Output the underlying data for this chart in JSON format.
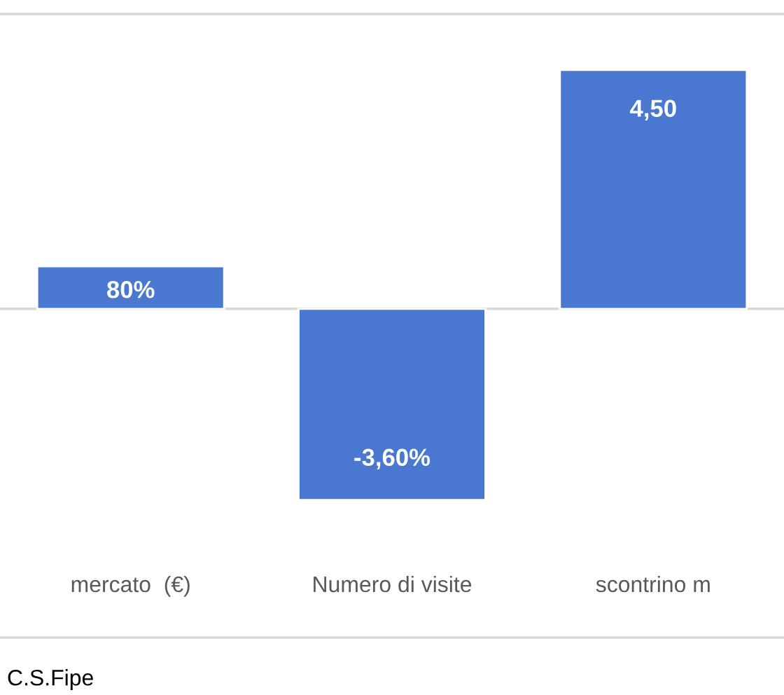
{
  "chart_data": {
    "type": "bar",
    "categories": [
      "mercato  (€)",
      "Numero di visite",
      "scontrino m"
    ],
    "values": [
      0.8,
      -3.6,
      4.5
    ],
    "color": "#4a78d0",
    "value_labels": [
      "80%",
      "-3,60%",
      "4,50"
    ],
    "annotations": [
      "C.S.Fipe"
    ]
  }
}
